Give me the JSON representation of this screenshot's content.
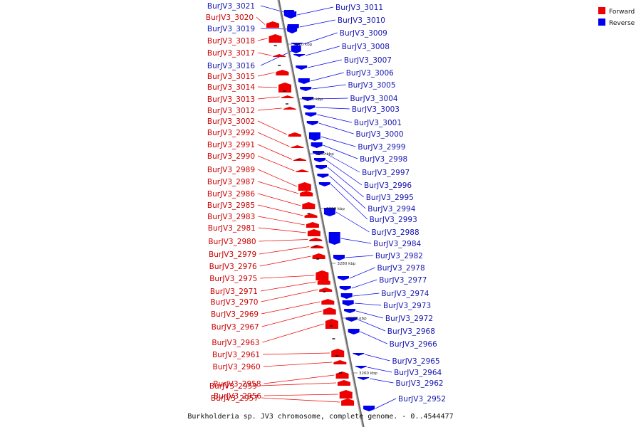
{
  "caption": "Burkholderia sp. JV3 chromosome, complete genome. - 0..4544477",
  "legend": [
    {
      "label": "Forward",
      "color": "#ee0000"
    },
    {
      "label": "Reverse",
      "color": "#0000ee"
    }
  ],
  "colors": {
    "forward_label": "#cc0000",
    "reverse_label": "#1515b0",
    "forward_feature": "#ee0000",
    "reverse_feature": "#0000ee",
    "backbone": "#777777"
  },
  "ticks": [
    "3320 kbp",
    "3310 kbp",
    "3300 kbp",
    "3290 kbp",
    "3280 kbp",
    "3270 kbp",
    "3260 kbp"
  ],
  "forward_genes": [
    "BurJV3_3020",
    "BurJV3_3018",
    "BurJV3_3017",
    "BurJV3_3015",
    "BurJV3_3014",
    "BurJV3_3013",
    "BurJV3_3012",
    "BurJV3_3002",
    "BurJV3_2992",
    "BurJV3_2991",
    "BurJV3_2990",
    "BurJV3_2989",
    "BurJV3_2987",
    "BurJV3_2986",
    "BurJV3_2985",
    "BurJV3_2983",
    "BurJV3_2981",
    "BurJV3_2980",
    "BurJV3_2979",
    "BurJV3_2976",
    "BurJV3_2975",
    "BurJV3_2971",
    "BurJV3_2970",
    "BurJV3_2969",
    "BurJV3_2967",
    "BurJV3_2963",
    "BurJV3_2961",
    "BurJV3_2960",
    "BurJV3_2958",
    "BurJV3_2959",
    "BurJV3_2956",
    "BurJV3_2957"
  ],
  "reverse_genes_left": [
    "BurJV3_3021",
    "BurJV3_3019",
    "BurJV3_3016"
  ],
  "reverse_genes_right": [
    "BurJV3_3011",
    "BurJV3_3010",
    "BurJV3_3009",
    "BurJV3_3008",
    "BurJV3_3007",
    "BurJV3_3006",
    "BurJV3_3005",
    "BurJV3_3004",
    "BurJV3_3003",
    "BurJV3_3001",
    "BurJV3_3000",
    "BurJV3_2999",
    "BurJV3_2998",
    "BurJV3_2997",
    "BurJV3_2996",
    "BurJV3_2995",
    "BurJV3_2994",
    "BurJV3_2993",
    "BurJV3_2988",
    "BurJV3_2984",
    "BurJV3_2982",
    "BurJV3_2978",
    "BurJV3_2977",
    "BurJV3_2974",
    "BurJV3_2973",
    "BurJV3_2972",
    "BurJV3_2968",
    "BurJV3_2966",
    "BurJV3_2965",
    "BurJV3_2964",
    "BurJV3_2962",
    "BurJV3_2952"
  ]
}
